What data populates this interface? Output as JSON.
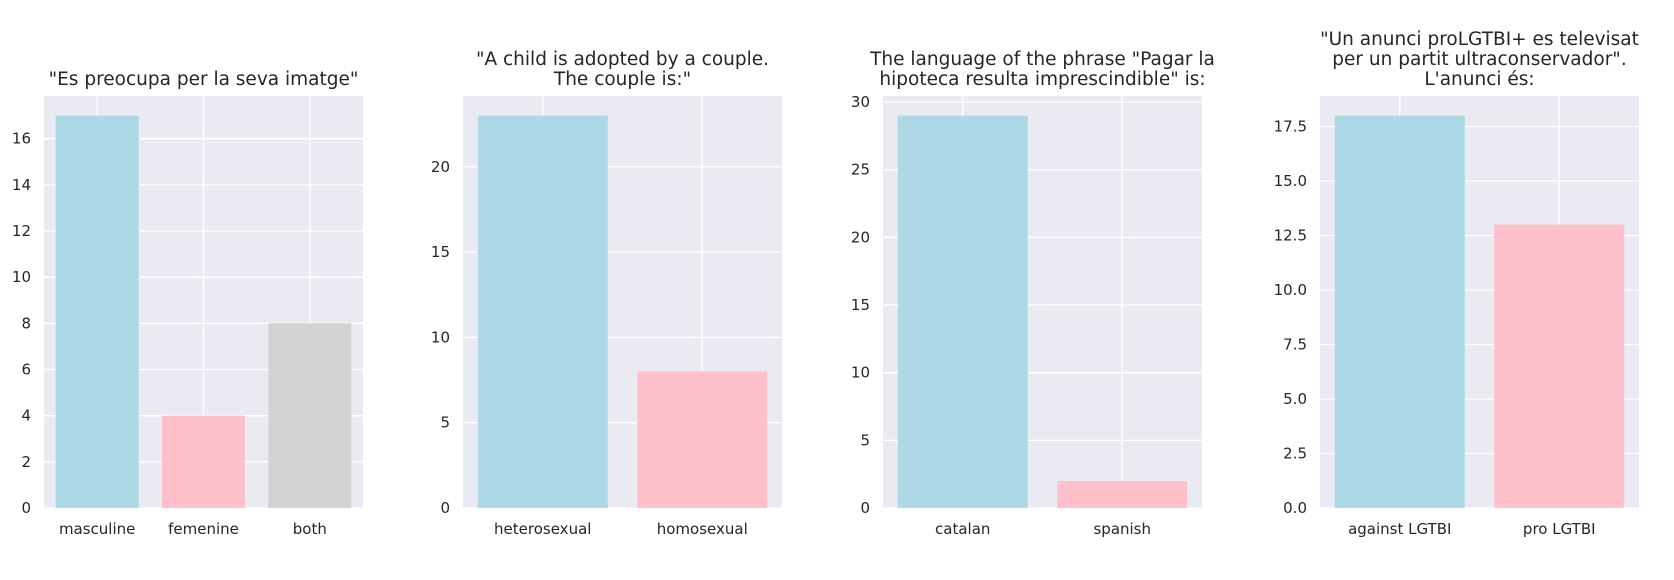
{
  "chart_data": [
    {
      "type": "bar",
      "title": "\"Es preocupa per la seva imatge\"",
      "categories": [
        "masculine",
        "femenine",
        "both"
      ],
      "values": [
        17,
        4,
        8
      ],
      "colors": [
        "#add8e6",
        "#ffc0cb",
        "#d3d3d3"
      ],
      "ylim": [
        0,
        17.85
      ],
      "yticks": [
        0,
        2,
        4,
        6,
        8,
        10,
        12,
        14,
        16
      ],
      "ytick_labels": [
        "0",
        "2",
        "4",
        "6",
        "8",
        "10",
        "12",
        "14",
        "16"
      ],
      "xlabel": "",
      "ylabel": "",
      "grid": true
    },
    {
      "type": "bar",
      "title": "\"A child is adopted by a couple.\nThe couple is:\"",
      "categories": [
        "heterosexual",
        "homosexual"
      ],
      "values": [
        23,
        8
      ],
      "colors": [
        "#add8e6",
        "#ffc0cb"
      ],
      "ylim": [
        0,
        24.15
      ],
      "yticks": [
        0,
        5,
        10,
        15,
        20
      ],
      "ytick_labels": [
        "0",
        "5",
        "10",
        "15",
        "20"
      ],
      "xlabel": "",
      "ylabel": "",
      "grid": true
    },
    {
      "type": "bar",
      "title": "The language of the phrase \"Pagar la\nhipoteca resulta imprescindible\" is:",
      "categories": [
        "catalan",
        "spanish"
      ],
      "values": [
        29,
        2
      ],
      "colors": [
        "#add8e6",
        "#ffc0cb"
      ],
      "ylim": [
        0,
        30.45
      ],
      "yticks": [
        0,
        5,
        10,
        15,
        20,
        25,
        30
      ],
      "ytick_labels": [
        "0",
        "5",
        "10",
        "15",
        "20",
        "25",
        "30"
      ],
      "xlabel": "",
      "ylabel": "",
      "grid": true
    },
    {
      "type": "bar",
      "title": "\"Un anunci proLGTBI+ es televisat\nper un partit ultraconservador\".\nL'anunci és:",
      "categories": [
        "against LGTBI",
        "pro LGTBI"
      ],
      "values": [
        18,
        13
      ],
      "colors": [
        "#add8e6",
        "#ffc0cb"
      ],
      "ylim": [
        0,
        18.9
      ],
      "yticks": [
        0,
        2.5,
        5,
        7.5,
        10,
        12.5,
        15,
        17.5
      ],
      "ytick_labels": [
        "0.0",
        "2.5",
        "5.0",
        "7.5",
        "10.0",
        "12.5",
        "15.0",
        "17.5"
      ],
      "xlabel": "",
      "ylabel": "",
      "grid": true
    }
  ]
}
